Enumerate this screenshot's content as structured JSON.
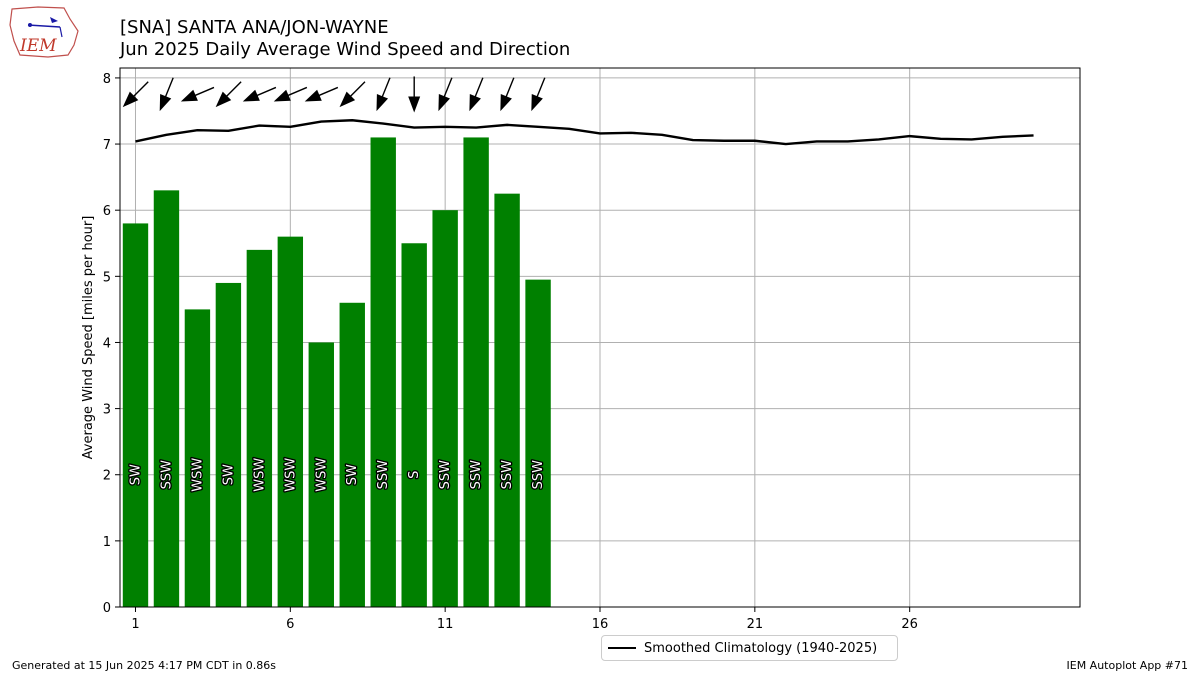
{
  "logo_text": "IEM",
  "title_line1": "[SNA] SANTA ANA/JON-WAYNE",
  "title_line2": "Jun 2025 Daily Average Wind Speed and Direction",
  "footer_left": "Generated at 15 Jun 2025 4:17 PM CDT in 0.86s",
  "footer_right": "IEM Autoplot App #71",
  "legend_label": "Smoothed Climatology (1940-2025)",
  "colors": {
    "bar": "#008000",
    "line": "#000000",
    "grid": "#b0b0b0",
    "arrow": "#000000"
  },
  "chart_data": {
    "type": "bar",
    "ylabel": "Average Wind Speed [miles per hour]",
    "xlabel": "",
    "ylim": [
      0,
      8.15
    ],
    "xlim": [
      0.5,
      31.5
    ],
    "yticks": [
      0,
      1,
      2,
      3,
      4,
      5,
      6,
      7,
      8
    ],
    "xticks": [
      1,
      6,
      11,
      16,
      21,
      26
    ],
    "grid": true,
    "legend_position": "bottom-center",
    "days": [
      1,
      2,
      3,
      4,
      5,
      6,
      7,
      8,
      9,
      10,
      11,
      12,
      13,
      14
    ],
    "avg_speed": [
      5.8,
      6.3,
      4.5,
      4.9,
      5.4,
      5.6,
      4.0,
      4.6,
      7.1,
      5.5,
      6.0,
      7.1,
      6.25,
      4.95
    ],
    "direction_labels": [
      "SW",
      "SSW",
      "WSW",
      "SW",
      "WSW",
      "WSW",
      "WSW",
      "SW",
      "SSW",
      "S",
      "SSW",
      "SSW",
      "SSW",
      "SSW"
    ],
    "direction_degrees": [
      225,
      202,
      247,
      225,
      247,
      247,
      247,
      225,
      202,
      180,
      202,
      202,
      202,
      202
    ],
    "climatology": {
      "name": "Smoothed Climatology (1940-2025)",
      "days": [
        1,
        2,
        3,
        4,
        5,
        6,
        7,
        8,
        9,
        10,
        11,
        12,
        13,
        14,
        15,
        16,
        17,
        18,
        19,
        20,
        21,
        22,
        23,
        24,
        25,
        26,
        27,
        28,
        29,
        30
      ],
      "values": [
        7.04,
        7.14,
        7.21,
        7.2,
        7.28,
        7.26,
        7.34,
        7.36,
        7.31,
        7.25,
        7.26,
        7.25,
        7.29,
        7.26,
        7.23,
        7.16,
        7.17,
        7.14,
        7.06,
        7.05,
        7.05,
        7.0,
        7.04,
        7.04,
        7.07,
        7.12,
        7.08,
        7.07,
        7.11,
        7.13
      ]
    }
  }
}
